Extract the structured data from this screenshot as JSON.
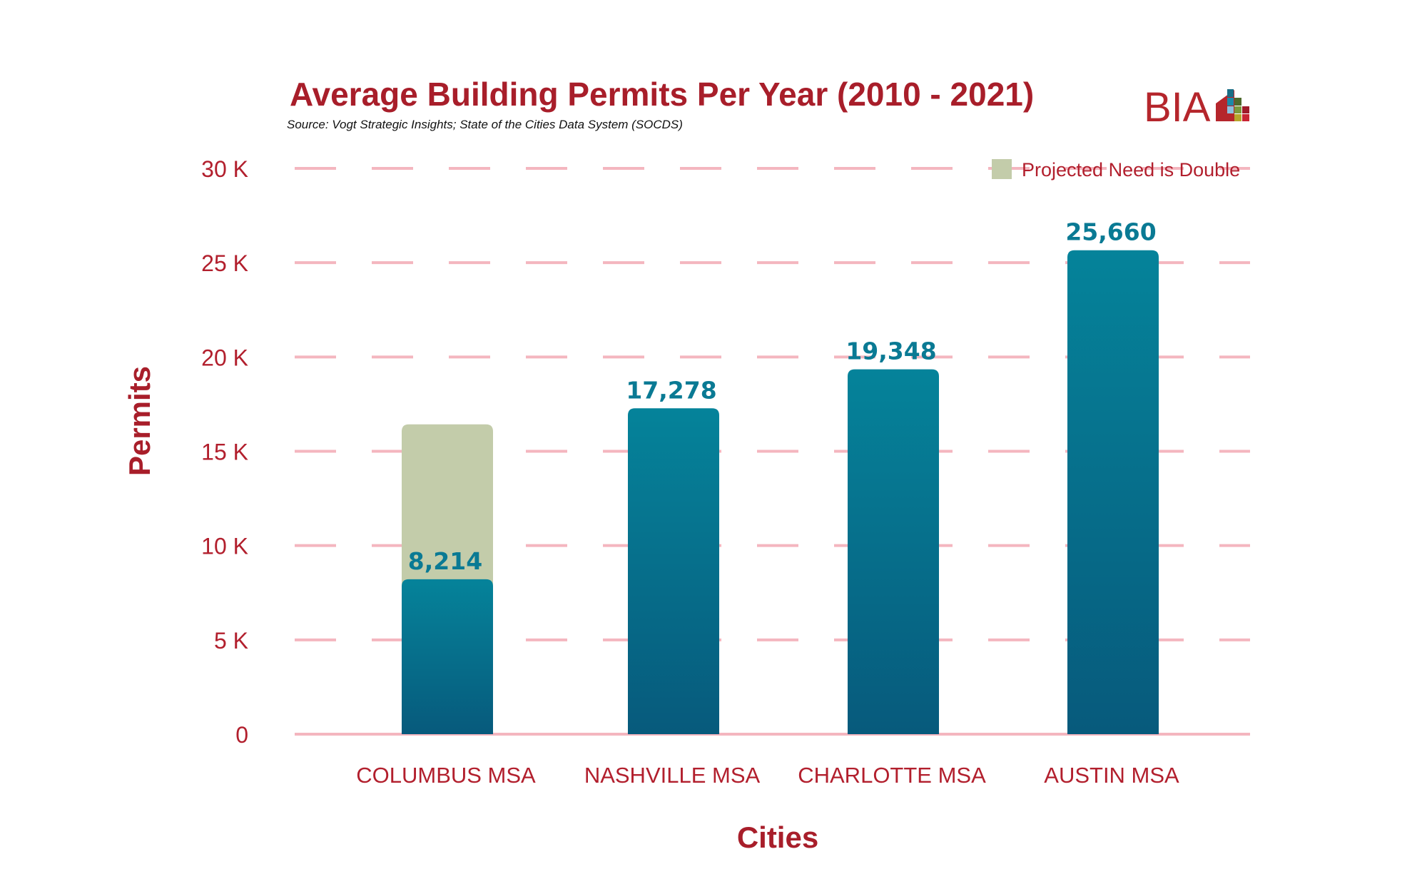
{
  "chart_data": {
    "type": "bar",
    "title": "Average Building Permits Per Year (2010 - 2021)",
    "subtitle": "Source: Vogt Strategic Insights; State of the Cities Data System (SOCDS)",
    "xlabel": "Cities",
    "ylabel": "Permits",
    "categories": [
      "COLUMBUS MSA",
      "NASHVILLE MSA",
      "CHARLOTTE MSA",
      "AUSTIN MSA"
    ],
    "values": [
      8214,
      17278,
      19348,
      25660
    ],
    "data_labels": [
      "8,214",
      "17,278",
      "19,348",
      "25,660"
    ],
    "projected": {
      "name": "Projected Need is Double",
      "category": "COLUMBUS MSA",
      "value": 16428
    },
    "ylim": [
      0,
      30000
    ],
    "yticks": [
      0,
      5000,
      10000,
      15000,
      20000,
      25000,
      30000
    ],
    "ytick_labels": [
      "0",
      "5 K",
      "10 K",
      "15 K",
      "20 K",
      "25 K",
      "30 K"
    ],
    "grid": true,
    "legend_position": "top-right",
    "colors": {
      "bar_top": "#05839a",
      "bar_bottom": "#075a7c",
      "projected": "#c3ccaa",
      "grid": "#f4b6bf",
      "text": "#b21f2d"
    }
  },
  "logo": {
    "text": "BIA"
  }
}
